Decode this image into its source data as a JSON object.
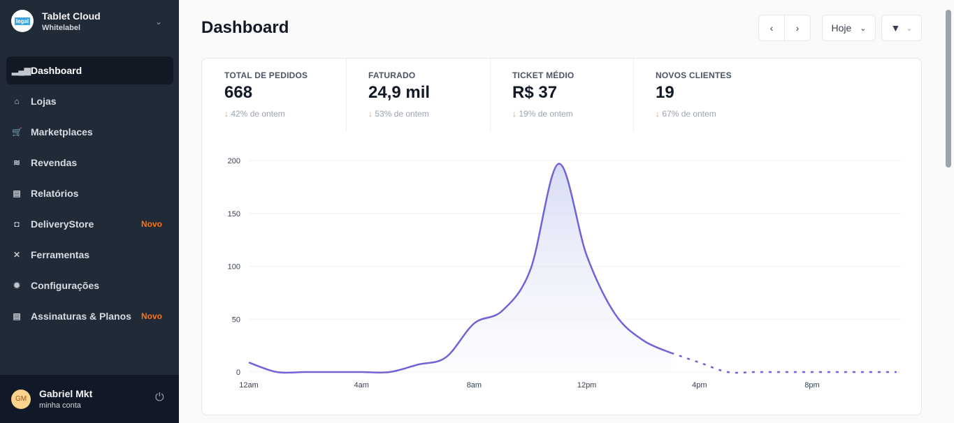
{
  "sidebar": {
    "brand_title": "Tablet Cloud",
    "brand_sub": "Whitelabel",
    "logo_text": "legal",
    "items": [
      {
        "label": "Dashboard",
        "icon": "bar-chart-icon",
        "glyph": "▂▄▆"
      },
      {
        "label": "Lojas",
        "icon": "store-icon",
        "glyph": "⌂"
      },
      {
        "label": "Marketplaces",
        "icon": "cart-icon",
        "glyph": "🛒"
      },
      {
        "label": "Revendas",
        "icon": "handshake-icon",
        "glyph": "≋"
      },
      {
        "label": "Relatórios",
        "icon": "document-icon",
        "glyph": "▤"
      },
      {
        "label": "DeliveryStore",
        "icon": "bag-icon",
        "glyph": "◘",
        "badge": "Novo"
      },
      {
        "label": "Ferramentas",
        "icon": "tools-icon",
        "glyph": "✕"
      },
      {
        "label": "Configurações",
        "icon": "gear-icon",
        "glyph": "✹"
      },
      {
        "label": "Assinaturas & Planos",
        "icon": "list-icon",
        "glyph": "▤",
        "badge": "Novo"
      }
    ],
    "user": {
      "initials": "GM",
      "name": "Gabriel Mkt",
      "sub": "minha conta"
    }
  },
  "header": {
    "title": "Dashboard",
    "period": "Hoje"
  },
  "stats": [
    {
      "label": "TOTAL DE PEDIDOS",
      "value": "668",
      "delta": "42% de ontem"
    },
    {
      "label": "FATURADO",
      "value": "24,9 mil",
      "delta": "53% de ontem"
    },
    {
      "label": "TICKET MÉDIO",
      "value": "R$ 37",
      "delta": "19% de ontem"
    },
    {
      "label": "NOVOS CLIENTES",
      "value": "19",
      "delta": "67% de ontem"
    }
  ],
  "chart_data": {
    "type": "area",
    "x_ticks": [
      "12am",
      "4am",
      "8am",
      "12pm",
      "4pm",
      "8pm"
    ],
    "y_ticks": [
      0,
      50,
      100,
      150,
      200
    ],
    "ylim": [
      0,
      200
    ],
    "x_hours": [
      0,
      1,
      2,
      3,
      4,
      5,
      6,
      7,
      8,
      9,
      10,
      11,
      12,
      13,
      14,
      15
    ],
    "values": [
      9,
      0,
      0,
      0,
      0,
      0,
      7,
      14,
      46,
      58,
      97,
      197,
      110,
      55,
      30,
      18
    ],
    "projected_hours": [
      15,
      16,
      17,
      18,
      19,
      20,
      21,
      22,
      23
    ],
    "projected_values": [
      18,
      9,
      0,
      0,
      0,
      0,
      0,
      0,
      0
    ],
    "color": "#6f63d6",
    "grid": true
  }
}
